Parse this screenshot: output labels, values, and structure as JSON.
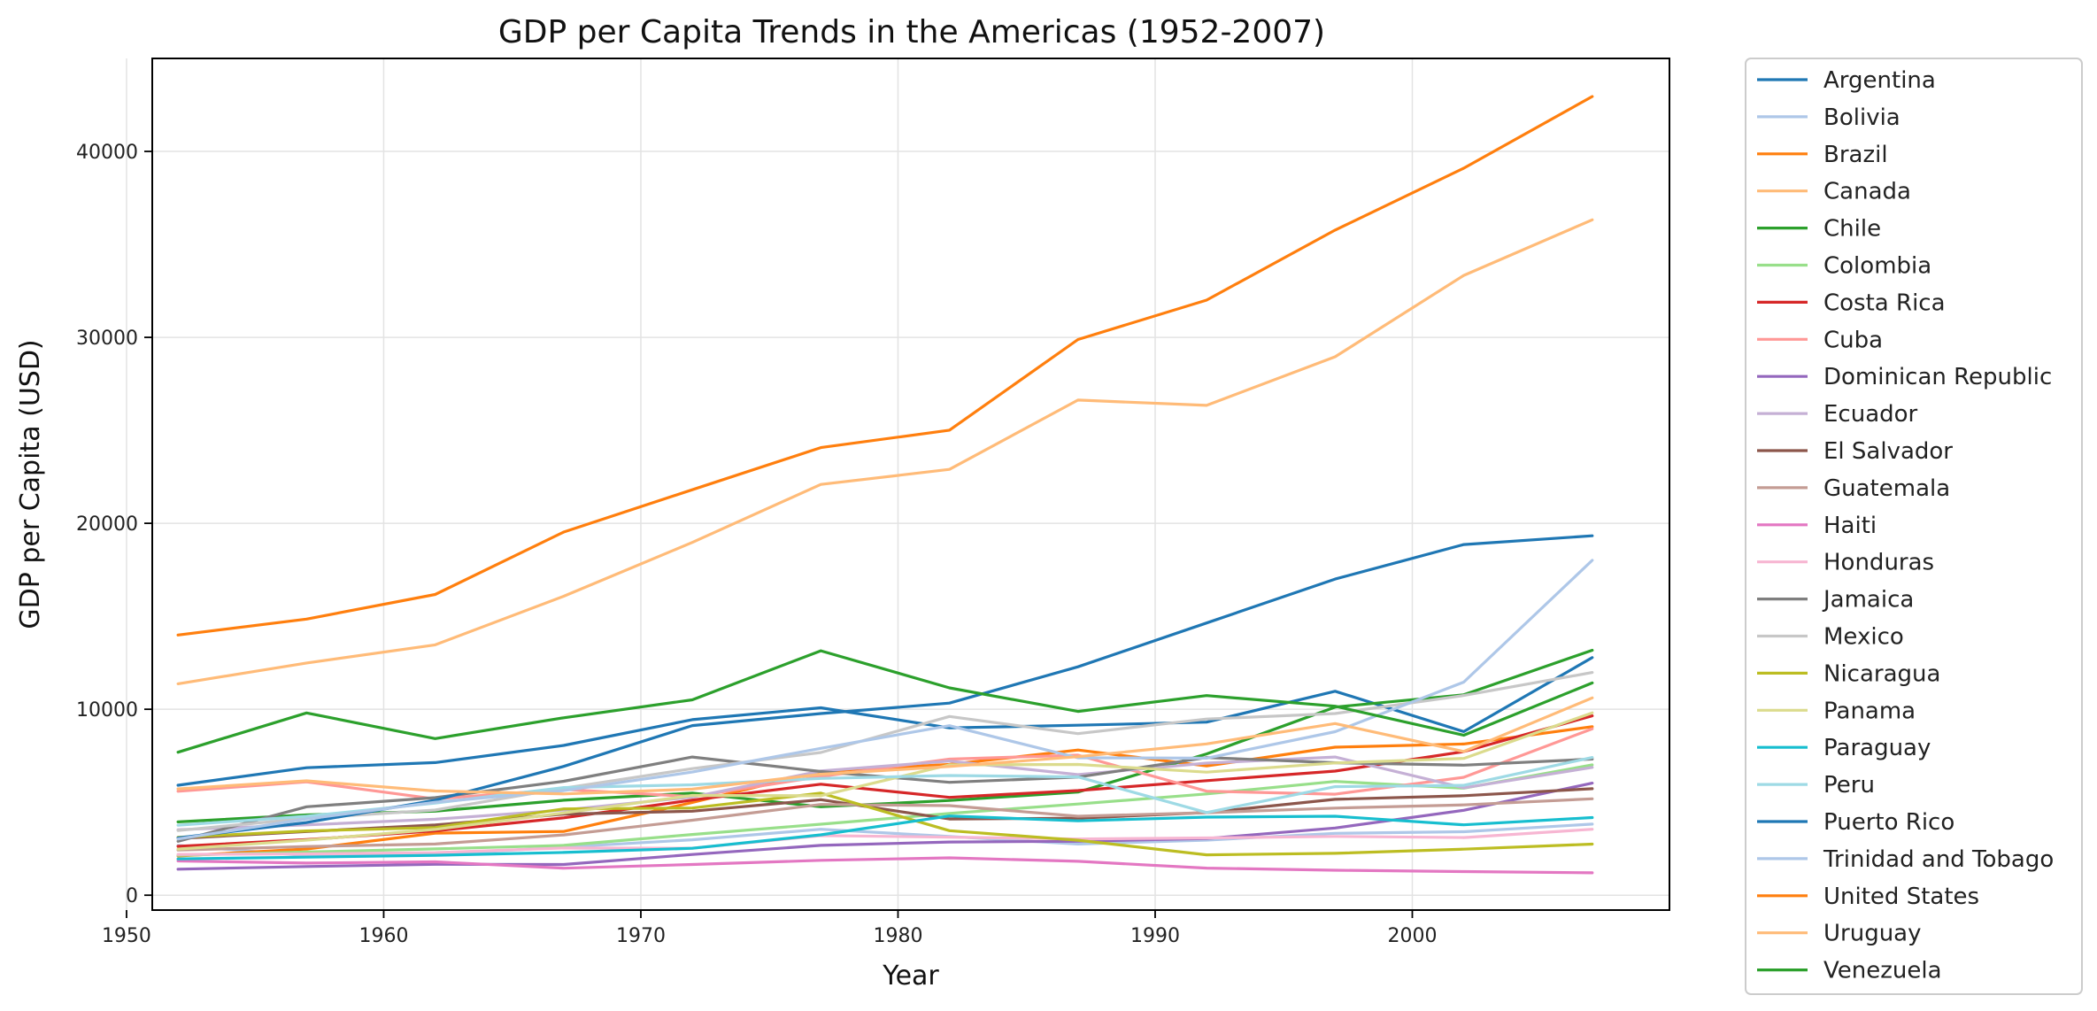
{
  "chart_data": {
    "type": "line",
    "title": "GDP per Capita Trends in the Americas (1952-2007)",
    "xlabel": "Year",
    "ylabel": "GDP per Capita (USD)",
    "xlim": [
      1951,
      2010
    ],
    "ylim": [
      -800,
      45000
    ],
    "xticks": [
      1950,
      1960,
      1970,
      1980,
      1990,
      2000
    ],
    "yticks": [
      0,
      10000,
      20000,
      30000,
      40000
    ],
    "grid": true,
    "legend_position": "outside-right",
    "x": [
      1952,
      1957,
      1962,
      1967,
      1972,
      1977,
      1982,
      1987,
      1992,
      1997,
      2002,
      2007
    ],
    "series": [
      {
        "name": "Argentina",
        "color": "#1f77b4",
        "values": [
          5911,
          6857,
          7133,
          8053,
          9443,
          10079,
          8998,
          9140,
          9308,
          10967,
          8798,
          12779
        ]
      },
      {
        "name": "Bolivia",
        "color": "#aec7e8",
        "values": [
          2677,
          2128,
          2181,
          2587,
          2980,
          3548,
          3157,
          2754,
          2962,
          3327,
          3413,
          3822
        ]
      },
      {
        "name": "Brazil",
        "color": "#ff7f0e",
        "values": [
          2109,
          2487,
          3337,
          3430,
          4986,
          6660,
          7031,
          7807,
          6950,
          7958,
          8131,
          9066
        ]
      },
      {
        "name": "Canada",
        "color": "#ffbb78",
        "values": [
          11367,
          12490,
          13462,
          16077,
          18971,
          22091,
          22899,
          26627,
          26343,
          28955,
          33329,
          36319
        ]
      },
      {
        "name": "Chile",
        "color": "#2ca02c",
        "values": [
          3940,
          4316,
          4519,
          5107,
          5494,
          4757,
          5096,
          5547,
          7596,
          10118,
          10779,
          13172
        ]
      },
      {
        "name": "Colombia",
        "color": "#98df8a",
        "values": [
          2144,
          2324,
          2492,
          2679,
          3265,
          3816,
          4398,
          4903,
          5445,
          6117,
          5755,
          7007
        ]
      },
      {
        "name": "Costa Rica",
        "color": "#d62728",
        "values": [
          2627,
          2991,
          3461,
          4162,
          5119,
          5969,
          5263,
          5629,
          6161,
          6677,
          7723,
          9645
        ]
      },
      {
        "name": "Cuba",
        "color": "#ff9896",
        "values": [
          5587,
          6093,
          5181,
          5690,
          5305,
          6381,
          7317,
          7533,
          5593,
          5432,
          6341,
          8948
        ]
      },
      {
        "name": "Dominican Republic",
        "color": "#9467bd",
        "values": [
          1398,
          1544,
          1662,
          1654,
          2190,
          2682,
          2862,
          2900,
          3045,
          3615,
          4564,
          6025
        ]
      },
      {
        "name": "Ecuador",
        "color": "#c5b0d5",
        "values": [
          3522,
          3780,
          4086,
          4579,
          5281,
          6680,
          7213,
          6482,
          7104,
          7430,
          5773,
          6873
        ]
      },
      {
        "name": "El Salvador",
        "color": "#8c564b",
        "values": [
          3048,
          3421,
          3777,
          4359,
          4520,
          5139,
          4099,
          4140,
          4444,
          5154,
          5352,
          5728
        ]
      },
      {
        "name": "Guatemala",
        "color": "#c49c94",
        "values": [
          2428,
          2617,
          2750,
          3243,
          4031,
          4880,
          4820,
          4247,
          4439,
          4684,
          4858,
          5186
        ]
      },
      {
        "name": "Haiti",
        "color": "#e377c2",
        "values": [
          1840,
          1726,
          1797,
          1452,
          1654,
          1875,
          2011,
          1823,
          1456,
          1342,
          1270,
          1202
        ]
      },
      {
        "name": "Honduras",
        "color": "#f7b6d2",
        "values": [
          2195,
          2220,
          2292,
          2538,
          2529,
          3203,
          3122,
          3024,
          3082,
          3161,
          3099,
          3548
        ]
      },
      {
        "name": "Jamaica",
        "color": "#7f7f7f",
        "values": [
          2899,
          4757,
          5246,
          6125,
          7434,
          6650,
          6068,
          6351,
          7405,
          7122,
          6995,
          7321
        ]
      },
      {
        "name": "Mexico",
        "color": "#c7c7c7",
        "values": [
          3478,
          4132,
          4582,
          5755,
          6809,
          7675,
          9611,
          8688,
          9472,
          9767,
          10742,
          11978
        ]
      },
      {
        "name": "Nicaragua",
        "color": "#bcbd22",
        "values": [
          3112,
          3457,
          3635,
          4644,
          4689,
          5487,
          3470,
          2955,
          2171,
          2253,
          2475,
          2749
        ]
      },
      {
        "name": "Panama",
        "color": "#dbdb8d",
        "values": [
          2480,
          2961,
          3537,
          4421,
          5364,
          5352,
          7009,
          7034,
          6619,
          7114,
          7357,
          9809
        ]
      },
      {
        "name": "Paraguay",
        "color": "#17becf",
        "values": [
          1952,
          2046,
          2149,
          2300,
          2523,
          3248,
          4259,
          3998,
          4197,
          4247,
          3784,
          4173
        ]
      },
      {
        "name": "Peru",
        "color": "#9edae5",
        "values": [
          3759,
          4245,
          4957,
          5788,
          5938,
          6281,
          6435,
          6361,
          4446,
          5838,
          5909,
          7409
        ]
      },
      {
        "name": "Puerto Rico",
        "color": "#1f77b4",
        "values": [
          3082,
          3907,
          5108,
          6929,
          9123,
          9771,
          10331,
          12281,
          14642,
          16999,
          18856,
          19329
        ]
      },
      {
        "name": "Trinidad and Tobago",
        "color": "#aec7e8",
        "values": [
          3023,
          4100,
          4997,
          5621,
          6620,
          7899,
          9119,
          7388,
          7370,
          8792,
          11461,
          18009
        ]
      },
      {
        "name": "United States",
        "color": "#ff7f0e",
        "values": [
          13990,
          14847,
          16173,
          19530,
          21806,
          24073,
          25010,
          29884,
          32004,
          35767,
          39097,
          42952
        ]
      },
      {
        "name": "Uruguay",
        "color": "#ffbb78",
        "values": [
          5717,
          6151,
          5603,
          5445,
          5703,
          6504,
          6920,
          7452,
          8137,
          9231,
          7727,
          10611
        ]
      },
      {
        "name": "Venezuela",
        "color": "#2ca02c",
        "values": [
          7690,
          9803,
          8422,
          9541,
          10506,
          13144,
          11152,
          9884,
          10734,
          10165,
          8605,
          11416
        ]
      }
    ]
  }
}
